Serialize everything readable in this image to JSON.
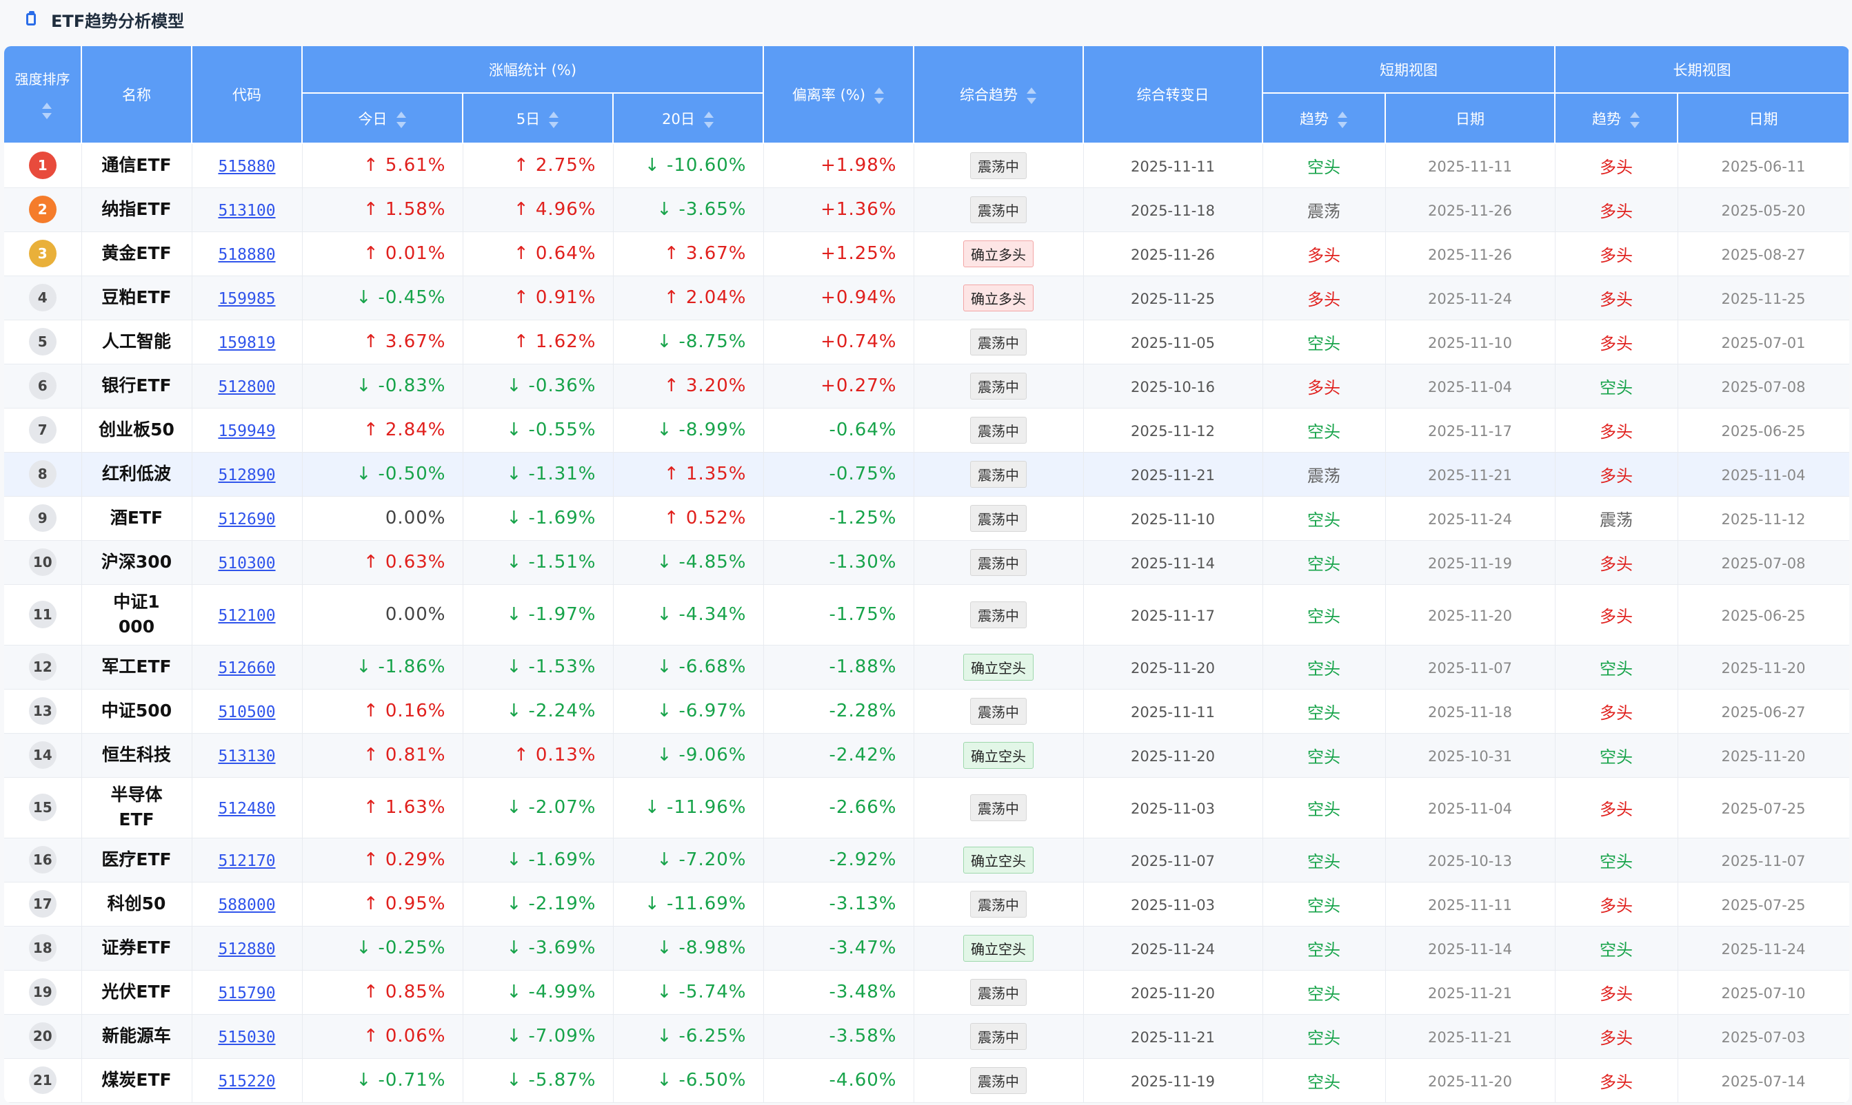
{
  "title": "ETF趋势分析模型",
  "icons": {
    "title_icon": "clipboard-icon",
    "sort_icon": "sort-icon"
  },
  "colors": {
    "header_bg": "#5b9cf6",
    "up": "#e0201d",
    "down": "#17a34a"
  },
  "headers": {
    "rank": "强度排序",
    "name": "名称",
    "code": "代码",
    "change_group": "涨幅统计 (%)",
    "today": "今日",
    "d5": "5日",
    "d20": "20日",
    "deviation": "偏离率 (%)",
    "overall_trend": "综合趋势",
    "turn_date": "综合转变日",
    "short_view": "短期视图",
    "long_view": "长期视图",
    "short_trend": "趋势",
    "short_date": "日期",
    "long_trend": "趋势",
    "long_date": "日期"
  },
  "rows": [
    {
      "rank": "1",
      "name": "通信ETF",
      "code": "515880",
      "today": "5.61%",
      "d5": "2.75%",
      "d20": "-10.60%",
      "deviation": "+1.98%",
      "overall": "震荡中",
      "turn_date": "2025-11-11",
      "short_trend": "空头",
      "short_date": "2025-11-11",
      "long_trend": "多头",
      "long_date": "2025-06-11"
    },
    {
      "rank": "2",
      "name": "纳指ETF",
      "code": "513100",
      "today": "1.58%",
      "d5": "4.96%",
      "d20": "-3.65%",
      "deviation": "+1.36%",
      "overall": "震荡中",
      "turn_date": "2025-11-18",
      "short_trend": "震荡",
      "short_date": "2025-11-26",
      "long_trend": "多头",
      "long_date": "2025-05-20"
    },
    {
      "rank": "3",
      "name": "黄金ETF",
      "code": "518880",
      "today": "0.01%",
      "d5": "0.64%",
      "d20": "3.67%",
      "deviation": "+1.25%",
      "overall": "确立多头",
      "turn_date": "2025-11-26",
      "short_trend": "多头",
      "short_date": "2025-11-26",
      "long_trend": "多头",
      "long_date": "2025-08-27"
    },
    {
      "rank": "4",
      "name": "豆粕ETF",
      "code": "159985",
      "today": "-0.45%",
      "d5": "0.91%",
      "d20": "2.04%",
      "deviation": "+0.94%",
      "overall": "确立多头",
      "turn_date": "2025-11-25",
      "short_trend": "多头",
      "short_date": "2025-11-24",
      "long_trend": "多头",
      "long_date": "2025-11-25"
    },
    {
      "rank": "5",
      "name": "人工智能",
      "code": "159819",
      "today": "3.67%",
      "d5": "1.62%",
      "d20": "-8.75%",
      "deviation": "+0.74%",
      "overall": "震荡中",
      "turn_date": "2025-11-05",
      "short_trend": "空头",
      "short_date": "2025-11-10",
      "long_trend": "多头",
      "long_date": "2025-07-01"
    },
    {
      "rank": "6",
      "name": "银行ETF",
      "code": "512800",
      "today": "-0.83%",
      "d5": "-0.36%",
      "d20": "3.20%",
      "deviation": "+0.27%",
      "overall": "震荡中",
      "turn_date": "2025-10-16",
      "short_trend": "多头",
      "short_date": "2025-11-04",
      "long_trend": "空头",
      "long_date": "2025-07-08"
    },
    {
      "rank": "7",
      "name": "创业板50",
      "code": "159949",
      "today": "2.84%",
      "d5": "-0.55%",
      "d20": "-8.99%",
      "deviation": "-0.64%",
      "overall": "震荡中",
      "turn_date": "2025-11-12",
      "short_trend": "空头",
      "short_date": "2025-11-17",
      "long_trend": "多头",
      "long_date": "2025-06-25"
    },
    {
      "rank": "8",
      "name": "红利低波",
      "code": "512890",
      "today": "-0.50%",
      "d5": "-1.31%",
      "d20": "1.35%",
      "deviation": "-0.75%",
      "overall": "震荡中",
      "turn_date": "2025-11-21",
      "short_trend": "震荡",
      "short_date": "2025-11-21",
      "long_trend": "多头",
      "long_date": "2025-11-04"
    },
    {
      "rank": "9",
      "name": "酒ETF",
      "code": "512690",
      "today": "0.00%",
      "d5": "-1.69%",
      "d20": "0.52%",
      "deviation": "-1.25%",
      "overall": "震荡中",
      "turn_date": "2025-11-10",
      "short_trend": "空头",
      "short_date": "2025-11-24",
      "long_trend": "震荡",
      "long_date": "2025-11-12"
    },
    {
      "rank": "10",
      "name": "沪深300",
      "code": "510300",
      "today": "0.63%",
      "d5": "-1.51%",
      "d20": "-4.85%",
      "deviation": "-1.30%",
      "overall": "震荡中",
      "turn_date": "2025-11-14",
      "short_trend": "空头",
      "short_date": "2025-11-19",
      "long_trend": "多头",
      "long_date": "2025-07-08"
    },
    {
      "rank": "11",
      "name": "中证1000",
      "code": "512100",
      "today": "0.00%",
      "d5": "-1.97%",
      "d20": "-4.34%",
      "deviation": "-1.75%",
      "overall": "震荡中",
      "turn_date": "2025-11-17",
      "short_trend": "空头",
      "short_date": "2025-11-20",
      "long_trend": "多头",
      "long_date": "2025-06-25"
    },
    {
      "rank": "12",
      "name": "军工ETF",
      "code": "512660",
      "today": "-1.86%",
      "d5": "-1.53%",
      "d20": "-6.68%",
      "deviation": "-1.88%",
      "overall": "确立空头",
      "turn_date": "2025-11-20",
      "short_trend": "空头",
      "short_date": "2025-11-07",
      "long_trend": "空头",
      "long_date": "2025-11-20"
    },
    {
      "rank": "13",
      "name": "中证500",
      "code": "510500",
      "today": "0.16%",
      "d5": "-2.24%",
      "d20": "-6.97%",
      "deviation": "-2.28%",
      "overall": "震荡中",
      "turn_date": "2025-11-11",
      "short_trend": "空头",
      "short_date": "2025-11-18",
      "long_trend": "多头",
      "long_date": "2025-06-27"
    },
    {
      "rank": "14",
      "name": "恒生科技",
      "code": "513130",
      "today": "0.81%",
      "d5": "0.13%",
      "d20": "-9.06%",
      "deviation": "-2.42%",
      "overall": "确立空头",
      "turn_date": "2025-11-20",
      "short_trend": "空头",
      "short_date": "2025-10-31",
      "long_trend": "空头",
      "long_date": "2025-11-20"
    },
    {
      "rank": "15",
      "name": "半导体ETF",
      "code": "512480",
      "today": "1.63%",
      "d5": "-2.07%",
      "d20": "-11.96%",
      "deviation": "-2.66%",
      "overall": "震荡中",
      "turn_date": "2025-11-03",
      "short_trend": "空头",
      "short_date": "2025-11-04",
      "long_trend": "多头",
      "long_date": "2025-07-25"
    },
    {
      "rank": "16",
      "name": "医疗ETF",
      "code": "512170",
      "today": "0.29%",
      "d5": "-1.69%",
      "d20": "-7.20%",
      "deviation": "-2.92%",
      "overall": "确立空头",
      "turn_date": "2025-11-07",
      "short_trend": "空头",
      "short_date": "2025-10-13",
      "long_trend": "空头",
      "long_date": "2025-11-07"
    },
    {
      "rank": "17",
      "name": "科创50",
      "code": "588000",
      "today": "0.95%",
      "d5": "-2.19%",
      "d20": "-11.69%",
      "deviation": "-3.13%",
      "overall": "震荡中",
      "turn_date": "2025-11-03",
      "short_trend": "空头",
      "short_date": "2025-11-11",
      "long_trend": "多头",
      "long_date": "2025-07-25"
    },
    {
      "rank": "18",
      "name": "证券ETF",
      "code": "512880",
      "today": "-0.25%",
      "d5": "-3.69%",
      "d20": "-8.98%",
      "deviation": "-3.47%",
      "overall": "确立空头",
      "turn_date": "2025-11-24",
      "short_trend": "空头",
      "short_date": "2025-11-14",
      "long_trend": "空头",
      "long_date": "2025-11-24"
    },
    {
      "rank": "19",
      "name": "光伏ETF",
      "code": "515790",
      "today": "0.85%",
      "d5": "-4.99%",
      "d20": "-5.74%",
      "deviation": "-3.48%",
      "overall": "震荡中",
      "turn_date": "2025-11-20",
      "short_trend": "空头",
      "short_date": "2025-11-21",
      "long_trend": "多头",
      "long_date": "2025-07-10"
    },
    {
      "rank": "20",
      "name": "新能源车",
      "code": "515030",
      "today": "0.06%",
      "d5": "-7.09%",
      "d20": "-6.25%",
      "deviation": "-3.58%",
      "overall": "震荡中",
      "turn_date": "2025-11-21",
      "short_trend": "空头",
      "short_date": "2025-11-21",
      "long_trend": "多头",
      "long_date": "2025-07-03"
    },
    {
      "rank": "21",
      "name": "煤炭ETF",
      "code": "515220",
      "today": "-0.71%",
      "d5": "-5.87%",
      "d20": "-6.50%",
      "deviation": "-4.60%",
      "overall": "震荡中",
      "turn_date": "2025-11-19",
      "short_trend": "空头",
      "short_date": "2025-11-20",
      "long_trend": "多头",
      "long_date": "2025-07-14"
    }
  ]
}
